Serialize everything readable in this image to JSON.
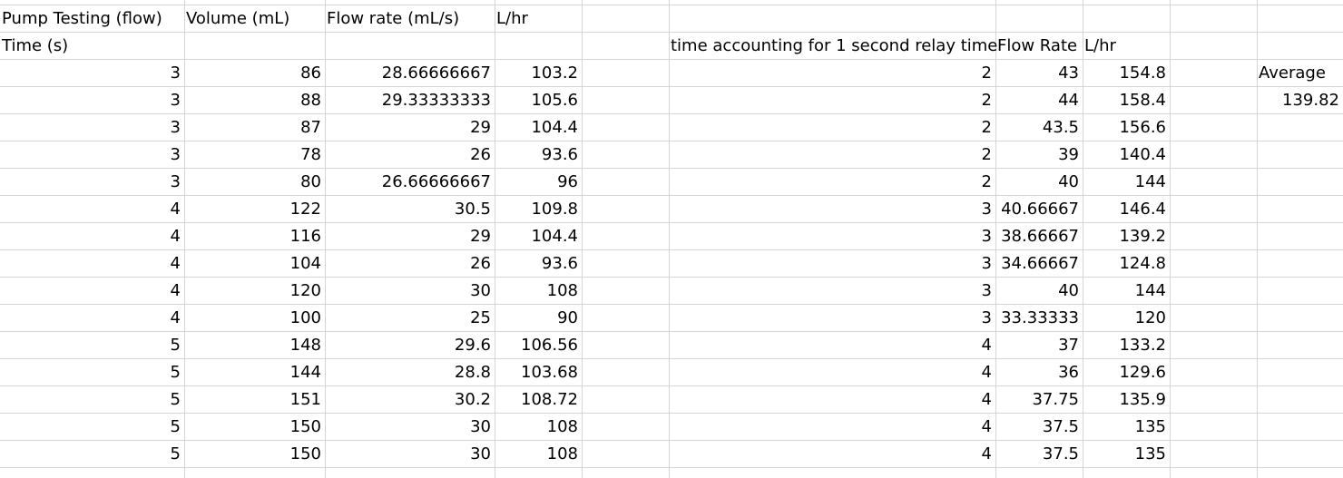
{
  "header": {
    "pump_testing": "Pump Testing (flow)",
    "time": "Time (s)",
    "volume": "Volume (mL)",
    "flow_rate": "Flow rate (mL/s)",
    "lhr": "L/hr",
    "relay_time": "time accounting for 1 second relay time",
    "flow_rate2": "Flow Rate",
    "lhr2": "L/hr",
    "average_label": "Average",
    "average_value": "139.82"
  },
  "rows": [
    [
      "3",
      "86",
      "28.66666667",
      "103.2",
      "2",
      "43",
      "154.8"
    ],
    [
      "3",
      "88",
      "29.33333333",
      "105.6",
      "2",
      "44",
      "158.4"
    ],
    [
      "3",
      "87",
      "29",
      "104.4",
      "2",
      "43.5",
      "156.6"
    ],
    [
      "3",
      "78",
      "26",
      "93.6",
      "2",
      "39",
      "140.4"
    ],
    [
      "3",
      "80",
      "26.66666667",
      "96",
      "2",
      "40",
      "144"
    ],
    [
      "4",
      "122",
      "30.5",
      "109.8",
      "3",
      "40.66667",
      "146.4"
    ],
    [
      "4",
      "116",
      "29",
      "104.4",
      "3",
      "38.66667",
      "139.2"
    ],
    [
      "4",
      "104",
      "26",
      "93.6",
      "3",
      "34.66667",
      "124.8"
    ],
    [
      "4",
      "120",
      "30",
      "108",
      "3",
      "40",
      "144"
    ],
    [
      "4",
      "100",
      "25",
      "90",
      "3",
      "33.33333",
      "120"
    ],
    [
      "5",
      "148",
      "29.6",
      "106.56",
      "4",
      "37",
      "133.2"
    ],
    [
      "5",
      "144",
      "28.8",
      "103.68",
      "4",
      "36",
      "129.6"
    ],
    [
      "5",
      "151",
      "30.2",
      "108.72",
      "4",
      "37.75",
      "135.9"
    ],
    [
      "5",
      "150",
      "30",
      "108",
      "4",
      "37.5",
      "135"
    ],
    [
      "5",
      "150",
      "30",
      "108",
      "4",
      "37.5",
      "135"
    ]
  ]
}
